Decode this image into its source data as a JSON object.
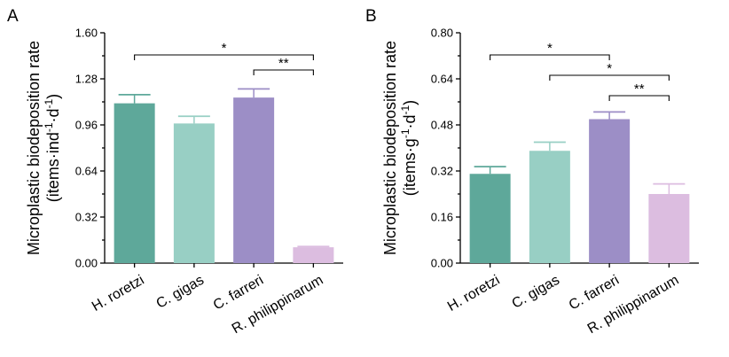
{
  "chart_data": [
    {
      "type": "bar",
      "panel_label": "A",
      "ylabel_main": "Microplastic biodeposition rate",
      "ylabel_unit": [
        "(items·ind",
        "-1",
        "·d",
        "-1",
        ")"
      ],
      "categories": [
        "H. roretzi",
        "C. gigas",
        "C. farreri",
        "R. philippinarum"
      ],
      "values": [
        1.11,
        0.97,
        1.15,
        0.11
      ],
      "errors": [
        0.06,
        0.05,
        0.06,
        0.005
      ],
      "colors": [
        "#5ea89a",
        "#98cfc4",
        "#9c8ec6",
        "#dcbde0"
      ],
      "ylim": [
        0,
        1.6
      ],
      "yticks": [
        "0.00",
        "0.32",
        "0.64",
        "0.96",
        "1.28",
        "1.60"
      ],
      "significance": [
        {
          "from": 0,
          "to": 3,
          "label": "*"
        },
        {
          "from": 2,
          "to": 3,
          "label": "**"
        }
      ]
    },
    {
      "type": "bar",
      "panel_label": "B",
      "ylabel_main": "Microplastic biodeposition rate",
      "ylabel_unit": [
        "(items·g",
        "-1",
        "·d",
        "-1",
        ")"
      ],
      "categories": [
        "H. roretzi",
        "C. gigas",
        "C. farreri",
        "R. philippinarum"
      ],
      "values": [
        0.31,
        0.39,
        0.5,
        0.24
      ],
      "errors": [
        0.025,
        0.03,
        0.025,
        0.035
      ],
      "colors": [
        "#5ea89a",
        "#98cfc4",
        "#9c8ec6",
        "#dcbde0"
      ],
      "ylim": [
        0,
        0.8
      ],
      "yticks": [
        "0.00",
        "0.16",
        "0.32",
        "0.48",
        "0.64",
        "0.80"
      ],
      "significance": [
        {
          "from": 0,
          "to": 2,
          "label": "*"
        },
        {
          "from": 1,
          "to": 3,
          "label": "*"
        },
        {
          "from": 2,
          "to": 3,
          "label": "**"
        }
      ]
    }
  ]
}
